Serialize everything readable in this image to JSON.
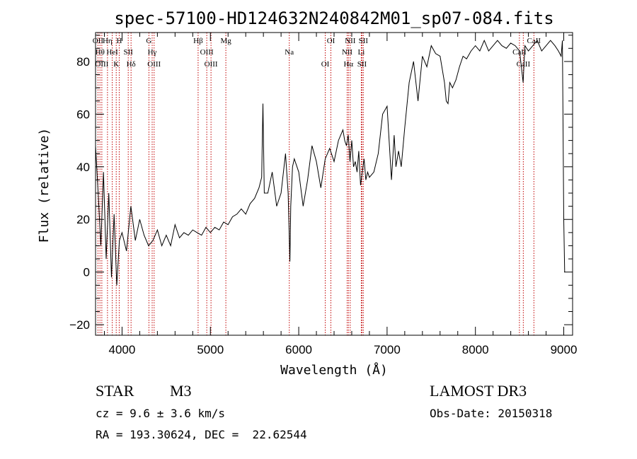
{
  "chart_data": {
    "type": "line",
    "title": "spec-57100-HD124632N240842M01_sp07-084.fits",
    "xlabel": "Wavelength (Å)",
    "ylabel": "Flux (relative)",
    "xlim": [
      3700,
      9100
    ],
    "ylim": [
      -24,
      91
    ],
    "xticks": [
      4000,
      5000,
      6000,
      7000,
      8000,
      9000
    ],
    "yticks": [
      -20,
      0,
      20,
      40,
      60,
      80
    ],
    "grid": false,
    "series": [
      {
        "name": "spectrum",
        "x": [
          3700,
          3730,
          3760,
          3790,
          3820,
          3850,
          3880,
          3910,
          3940,
          3970,
          4000,
          4050,
          4100,
          4150,
          4200,
          4250,
          4300,
          4350,
          4400,
          4450,
          4500,
          4550,
          4600,
          4650,
          4700,
          4750,
          4800,
          4850,
          4900,
          4950,
          5000,
          5050,
          5100,
          5150,
          5200,
          5250,
          5300,
          5350,
          5400,
          5450,
          5500,
          5550,
          5580,
          5595,
          5610,
          5650,
          5700,
          5750,
          5800,
          5850,
          5880,
          5900,
          5910,
          5930,
          5950,
          6000,
          6050,
          6100,
          6150,
          6200,
          6250,
          6300,
          6350,
          6400,
          6450,
          6500,
          6520,
          6540,
          6560,
          6580,
          6600,
          6620,
          6640,
          6660,
          6680,
          6700,
          6720,
          6740,
          6760,
          6780,
          6800,
          6850,
          6900,
          6950,
          7000,
          7050,
          7080,
          7100,
          7130,
          7160,
          7200,
          7250,
          7300,
          7350,
          7400,
          7450,
          7500,
          7550,
          7600,
          7650,
          7670,
          7690,
          7710,
          7740,
          7780,
          7820,
          7860,
          7900,
          7950,
          8000,
          8050,
          8100,
          8150,
          8200,
          8250,
          8300,
          8350,
          8400,
          8450,
          8500,
          8520,
          8540,
          8560,
          8600,
          8650,
          8700,
          8750,
          8800,
          8850,
          8900,
          8940,
          8970,
          8985,
          9000,
          9010
        ],
        "y": [
          48,
          30,
          10,
          38,
          5,
          30,
          -2,
          22,
          -5,
          12,
          15,
          8,
          25,
          12,
          20,
          14,
          10,
          12,
          16,
          10,
          14,
          10,
          18,
          13,
          15,
          14,
          16,
          15,
          14,
          17,
          15,
          17,
          16,
          19,
          18,
          21,
          22,
          24,
          22,
          26,
          28,
          32,
          36,
          64,
          30,
          30,
          38,
          25,
          30,
          45,
          30,
          4,
          25,
          40,
          43,
          38,
          25,
          35,
          48,
          42,
          32,
          43,
          47,
          42,
          50,
          54,
          50,
          48,
          52,
          42,
          50,
          40,
          42,
          38,
          46,
          33,
          38,
          43,
          35,
          38,
          36,
          38,
          45,
          60,
          63,
          35,
          52,
          40,
          46,
          40,
          55,
          72,
          80,
          65,
          82,
          78,
          86,
          83,
          82,
          72,
          65,
          64,
          72,
          70,
          73,
          78,
          82,
          81,
          84,
          86,
          84,
          88,
          84,
          86,
          88,
          86,
          85,
          87,
          86,
          84,
          78,
          72,
          86,
          84,
          86,
          88,
          84,
          86,
          88,
          86,
          84,
          82,
          88,
          20,
          0
        ]
      }
    ],
    "lines": [
      {
        "name": "OII",
        "x": 3727
      },
      {
        "name": "Hθ",
        "x": 3750
      },
      {
        "name": "OIII",
        "x": 3771
      },
      {
        "name": "Hη",
        "x": 3835
      },
      {
        "name": "HeI",
        "x": 3889
      },
      {
        "name": "K",
        "x": 3934
      },
      {
        "name": "H",
        "x": 3968
      },
      {
        "name": "SII",
        "x": 4070
      },
      {
        "name": "Hδ",
        "x": 4102
      },
      {
        "name": "G",
        "x": 4304
      },
      {
        "name": "Hγ",
        "x": 4341
      },
      {
        "name": "OIII",
        "x": 4363
      },
      {
        "name": "Hβ",
        "x": 4861
      },
      {
        "name": "OIII",
        "x": 4959
      },
      {
        "name": "OIII",
        "x": 5007
      },
      {
        "name": "Mg",
        "x": 5175
      },
      {
        "name": "Na",
        "x": 5893
      },
      {
        "name": "OI",
        "x": 6300
      },
      {
        "name": "OI",
        "x": 6364
      },
      {
        "name": "NII",
        "x": 6548
      },
      {
        "name": "Hα",
        "x": 6563
      },
      {
        "name": "NII",
        "x": 6583
      },
      {
        "name": "Li",
        "x": 6708
      },
      {
        "name": "SII",
        "x": 6716
      },
      {
        "name": "SII",
        "x": 6731
      },
      {
        "name": "CaII",
        "x": 8498
      },
      {
        "name": "CaII",
        "x": 8542
      },
      {
        "name": "CaII",
        "x": 8662
      }
    ]
  },
  "info": {
    "object_type": "STAR",
    "subclass": "M3",
    "survey": "LAMOST DR3",
    "cz": "cz = 9.6 ± 3.6 km/s",
    "obs_date": "Obs-Date: 20150318",
    "coords": "RA = 193.30624, DEC =  22.62544"
  },
  "colors": {
    "line": "#000000",
    "marker": "#c00000",
    "background": "#ffffff"
  }
}
